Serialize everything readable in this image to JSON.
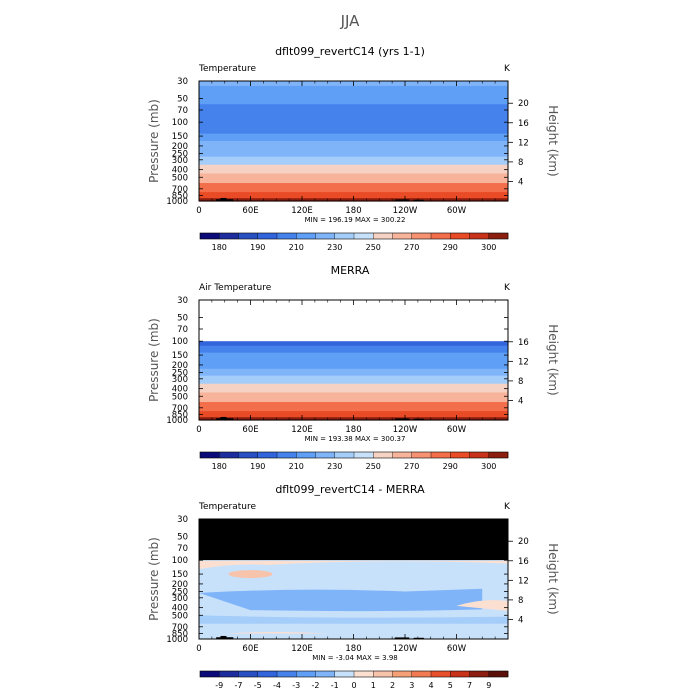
{
  "page": {
    "supertitle": "JJA"
  },
  "chart_data": [
    {
      "type": "heatmap",
      "title": "dflt099_revertC14 (yrs 1-1)",
      "field_label": "Temperature",
      "units": "K",
      "ylabel": "Pressure (mb)",
      "ylabel_right": "Height (km)",
      "x_ticks": [
        "0",
        "60E",
        "120E",
        "180",
        "120W",
        "60W"
      ],
      "x_range_deg": [
        0,
        360
      ],
      "y_ticks": [
        "30",
        "50",
        "70",
        "100",
        "150",
        "200",
        "250",
        "300",
        "400",
        "500",
        "700",
        "850",
        "1000"
      ],
      "y_range_mb": [
        30,
        1000
      ],
      "height_ticks": [
        "4",
        "8",
        "12",
        "16",
        "20"
      ],
      "stats": "MIN = 196.19   MAX = 300.22",
      "levels": [
        180,
        185,
        190,
        200,
        210,
        220,
        230,
        240,
        250,
        260,
        270,
        280,
        290,
        295,
        300
      ],
      "colorbar_labels": [
        "180",
        "190",
        "210",
        "230",
        "250",
        "270",
        "290",
        "300"
      ],
      "profile": [
        {
          "p": 30,
          "v": 222
        },
        {
          "p": 40,
          "v": 216
        },
        {
          "p": 50,
          "v": 211
        },
        {
          "p": 70,
          "v": 206
        },
        {
          "p": 100,
          "v": 201
        },
        {
          "p": 130,
          "v": 205
        },
        {
          "p": 150,
          "v": 211
        },
        {
          "p": 200,
          "v": 220
        },
        {
          "p": 250,
          "v": 228
        },
        {
          "p": 300,
          "v": 236
        },
        {
          "p": 400,
          "v": 250
        },
        {
          "p": 500,
          "v": 261
        },
        {
          "p": 700,
          "v": 280
        },
        {
          "p": 850,
          "v": 290
        },
        {
          "p": 1000,
          "v": 300
        }
      ]
    },
    {
      "type": "heatmap",
      "title": "MERRA",
      "field_label": "Air Temperature",
      "units": "K",
      "ylabel": "Pressure (mb)",
      "ylabel_right": "Height (km)",
      "x_ticks": [
        "0",
        "60E",
        "120E",
        "180",
        "120W",
        "60W"
      ],
      "x_range_deg": [
        0,
        360
      ],
      "y_ticks": [
        "30",
        "50",
        "70",
        "100",
        "150",
        "200",
        "250",
        "300",
        "400",
        "500",
        "700",
        "850",
        "1000"
      ],
      "y_range_mb": [
        30,
        1000
      ],
      "height_ticks": [
        "4",
        "8",
        "12",
        "16"
      ],
      "stats": "MIN = 193.38   MAX = 300.37",
      "levels": [
        180,
        185,
        190,
        200,
        210,
        220,
        230,
        240,
        250,
        260,
        270,
        280,
        290,
        295,
        300
      ],
      "colorbar_labels": [
        "180",
        "190",
        "210",
        "230",
        "250",
        "270",
        "290",
        "300"
      ],
      "profile": [
        {
          "p": 100,
          "v": 197
        },
        {
          "p": 130,
          "v": 203
        },
        {
          "p": 150,
          "v": 210
        },
        {
          "p": 200,
          "v": 219
        },
        {
          "p": 250,
          "v": 228
        },
        {
          "p": 300,
          "v": 236
        },
        {
          "p": 400,
          "v": 250
        },
        {
          "p": 500,
          "v": 261
        },
        {
          "p": 700,
          "v": 280
        },
        {
          "p": 850,
          "v": 290
        },
        {
          "p": 1000,
          "v": 300
        }
      ]
    },
    {
      "type": "heatmap",
      "title": "dflt099_revertC14 - MERRA",
      "field_label": "Temperature",
      "units": "K",
      "ylabel": "Pressure (mb)",
      "ylabel_right": "Height (km)",
      "x_ticks": [
        "0",
        "60E",
        "120E",
        "180",
        "120W",
        "60W"
      ],
      "x_range_deg": [
        0,
        360
      ],
      "y_ticks": [
        "30",
        "50",
        "70",
        "100",
        "150",
        "200",
        "250",
        "300",
        "400",
        "500",
        "700",
        "850",
        "1000"
      ],
      "y_range_mb": [
        30,
        1000
      ],
      "height_ticks": [
        "4",
        "8",
        "12",
        "16",
        "20"
      ],
      "stats": "MIN =  -3.04   MAX =   3.98",
      "levels": [
        -9,
        -7,
        -5,
        -4,
        -3,
        -2,
        -1,
        0,
        1,
        2,
        3,
        4,
        5,
        7,
        9
      ],
      "colorbar_labels": [
        "-9",
        "-7",
        "-5",
        "-4",
        "-3",
        "-2",
        "-1",
        "0",
        "1",
        "2",
        "3",
        "4",
        "5",
        "7",
        "9"
      ],
      "missing_above_mb": 100
    }
  ],
  "colors": {
    "temperature": [
      "#0a0a78",
      "#1e2d9e",
      "#2850c3",
      "#3264dc",
      "#4682eb",
      "#5f9ff5",
      "#80b4f8",
      "#a5cdfa",
      "#c8e1fb",
      "#f5d2c3",
      "#f7b49b",
      "#f69172",
      "#f36e4b",
      "#e84b26",
      "#c8321a",
      "#8c1e0f"
    ],
    "difference": [
      "#0a0a78",
      "#1e2d9e",
      "#2850c3",
      "#3264dc",
      "#4682eb",
      "#5f9ff5",
      "#80b4f8",
      "#c8e1fb",
      "#fbe0d2",
      "#f7c3aa",
      "#f6a078",
      "#f27a52",
      "#e8502d",
      "#c83219",
      "#8c1e0f",
      "#5a0f0a"
    ]
  }
}
